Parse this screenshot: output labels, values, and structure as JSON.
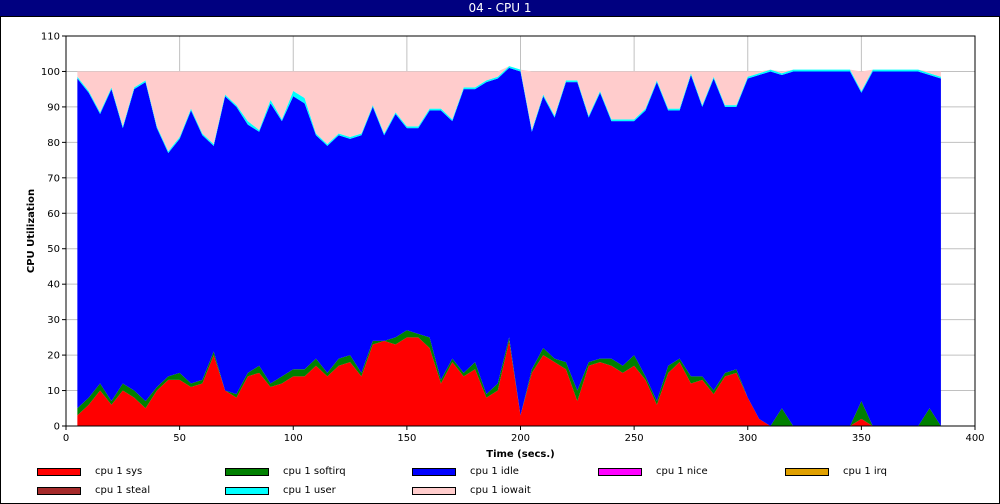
{
  "chart_data": {
    "type": "area",
    "title": "04 - CPU 1",
    "xlabel": "Time (secs.)",
    "ylabel": "CPU Utilization",
    "xlim": [
      0,
      400
    ],
    "ylim": [
      0,
      110
    ],
    "x_ticks": [
      0,
      50,
      100,
      150,
      200,
      250,
      300,
      350,
      400
    ],
    "y_ticks": [
      0,
      10,
      20,
      30,
      40,
      50,
      60,
      70,
      80,
      90,
      100,
      110
    ],
    "grid": true,
    "legend_position": "bottom",
    "x": [
      5,
      10,
      15,
      20,
      25,
      30,
      35,
      40,
      45,
      50,
      55,
      60,
      65,
      70,
      75,
      80,
      85,
      90,
      95,
      100,
      105,
      110,
      115,
      120,
      125,
      130,
      135,
      140,
      145,
      150,
      155,
      160,
      165,
      170,
      175,
      180,
      185,
      190,
      195,
      200,
      205,
      210,
      215,
      220,
      225,
      230,
      235,
      240,
      245,
      250,
      255,
      260,
      265,
      270,
      275,
      280,
      285,
      290,
      295,
      300,
      305,
      310,
      315,
      320,
      325,
      330,
      335,
      340,
      345,
      350,
      355,
      360,
      365,
      370,
      375,
      380,
      385
    ],
    "series": [
      {
        "name": "cpu 1 sys",
        "color": "#ff0000",
        "values": [
          3,
          6,
          10,
          6,
          10,
          8,
          5,
          10,
          13,
          13,
          11,
          12,
          20,
          10,
          8,
          14,
          15,
          11,
          12,
          14,
          14,
          17,
          14,
          17,
          18,
          14,
          23,
          24,
          23,
          25,
          25,
          22,
          12,
          18,
          14,
          16,
          8,
          10,
          24,
          3,
          15,
          20,
          18,
          16,
          7,
          17,
          18,
          17,
          15,
          17,
          13,
          6,
          15,
          18,
          12,
          13,
          9,
          14,
          15,
          8,
          2,
          0,
          0,
          0,
          0,
          0,
          0,
          0,
          0,
          2,
          0,
          0,
          0,
          0,
          0,
          0,
          0
        ]
      },
      {
        "name": "cpu 1 softirq",
        "color": "#008000",
        "values": [
          2,
          2,
          2,
          1,
          2,
          2,
          2,
          1,
          1,
          2,
          1,
          1,
          1,
          0,
          1,
          1,
          2,
          1,
          2,
          2,
          2,
          2,
          1,
          2,
          2,
          1,
          1,
          0,
          2,
          2,
          1,
          3,
          1,
          1,
          1,
          2,
          1,
          2,
          1,
          0,
          1,
          2,
          1,
          2,
          3,
          1,
          1,
          2,
          2,
          3,
          1,
          1,
          2,
          1,
          2,
          1,
          1,
          1,
          1,
          0,
          0,
          0,
          5,
          0,
          0,
          0,
          0,
          0,
          0,
          5,
          0,
          0,
          0,
          0,
          0,
          5,
          0
        ]
      },
      {
        "name": "cpu 1 idle",
        "color": "#0000ff",
        "values": [
          93,
          86,
          76,
          88,
          72,
          85,
          90,
          73,
          63,
          66,
          77,
          69,
          58,
          83,
          81,
          70,
          66,
          79,
          72,
          77,
          75,
          63,
          64,
          63,
          61,
          67,
          66,
          58,
          63,
          57,
          58,
          64,
          76,
          67,
          80,
          77,
          88,
          86,
          76,
          97,
          67,
          71,
          68,
          79,
          87,
          69,
          75,
          67,
          69,
          66,
          75,
          90,
          72,
          70,
          85,
          76,
          88,
          75,
          74,
          90,
          97,
          100,
          94,
          100,
          100,
          100,
          100,
          100,
          100,
          87,
          100,
          100,
          100,
          100,
          100,
          94,
          98
        ]
      },
      {
        "name": "cpu 1 nice",
        "color": "#ff00ff",
        "values": [
          0,
          0,
          0,
          0,
          0,
          0,
          0,
          0,
          0,
          0,
          0,
          0,
          0,
          0,
          0,
          0,
          0,
          0,
          0,
          0,
          0,
          0,
          0,
          0,
          0,
          0,
          0,
          0,
          0,
          0,
          0,
          0,
          0,
          0,
          0,
          0,
          0,
          0,
          0,
          0,
          0,
          0,
          0,
          0,
          0,
          0,
          0,
          0,
          0,
          0,
          0,
          0,
          0,
          0,
          0,
          0,
          0,
          0,
          0,
          0,
          0,
          0,
          0,
          0,
          0,
          0,
          0,
          0,
          0,
          0,
          0,
          0,
          0,
          0,
          0,
          0,
          0
        ]
      },
      {
        "name": "cpu 1 irq",
        "color": "#e0a000",
        "values": [
          0,
          0,
          0,
          0,
          0,
          0,
          0,
          0,
          0,
          0,
          0,
          0,
          0,
          0,
          0,
          0,
          0,
          0,
          0,
          0,
          0,
          0,
          0,
          0,
          0,
          0,
          0,
          0,
          0,
          0,
          0,
          0,
          0,
          0,
          0,
          0,
          0,
          0,
          0,
          0,
          0,
          0,
          0,
          0,
          0,
          0,
          0,
          0,
          0,
          0,
          0,
          0,
          0,
          0,
          0,
          0,
          0,
          0,
          0,
          0,
          0,
          0,
          0,
          0,
          0,
          0,
          0,
          0,
          0,
          0,
          0,
          0,
          0,
          0,
          0,
          0,
          0
        ]
      },
      {
        "name": "cpu 1 steal",
        "color": "#a52a2a",
        "values": [
          0,
          0,
          0,
          0,
          0,
          0,
          0,
          0,
          0,
          0,
          0,
          0,
          0,
          0,
          0,
          0,
          0,
          0,
          0,
          0,
          0,
          0,
          0,
          0,
          0,
          0,
          0,
          0,
          0,
          0,
          0,
          0,
          0,
          0,
          0,
          0,
          0,
          0,
          0,
          0,
          0,
          0,
          0,
          0,
          0,
          0,
          0,
          0,
          0,
          0,
          0,
          0,
          0,
          0,
          0,
          0,
          0,
          0,
          0,
          0,
          0,
          0,
          0,
          0,
          0,
          0,
          0,
          0,
          0,
          0,
          0,
          0,
          0,
          0,
          0,
          0,
          0
        ]
      },
      {
        "name": "cpu 1 user",
        "color": "#00ffff",
        "values": [
          0.5,
          0.5,
          0.5,
          0.5,
          0.5,
          0.5,
          0.5,
          0.5,
          0.5,
          0.5,
          0.5,
          0.5,
          0.5,
          0.5,
          0.5,
          1,
          0.5,
          1,
          0.5,
          1.5,
          1.5,
          0.5,
          0.5,
          0.5,
          0.5,
          0.5,
          0.5,
          0.5,
          0.5,
          0.5,
          0.5,
          0.5,
          0.5,
          0.5,
          0.5,
          0.5,
          0.5,
          0.5,
          0.5,
          0.5,
          0.5,
          0.5,
          0.5,
          0.5,
          0.5,
          0.5,
          0.5,
          0.5,
          0.5,
          0.5,
          0.5,
          0.5,
          0.5,
          0.5,
          0.5,
          0.5,
          0.5,
          0.5,
          0.5,
          0.5,
          0.5,
          0.5,
          0.5,
          0.5,
          0.5,
          0.5,
          0.5,
          0.5,
          0.5,
          0.5,
          0.5,
          0.5,
          0.5,
          0.5,
          0.5,
          0.5,
          0.5
        ]
      },
      {
        "name": "cpu 1 iowait",
        "color": "#ffcccc",
        "values": [
          1.5,
          5.5,
          11.5,
          4.5,
          15.5,
          4.5,
          2.5,
          15.5,
          22.5,
          18.5,
          10.5,
          17.5,
          20.5,
          6.5,
          9.5,
          14,
          16.5,
          8,
          13.5,
          5.5,
          7.5,
          17.5,
          20.5,
          17.5,
          18.5,
          17.5,
          9.5,
          17.5,
          11.5,
          15.5,
          15.5,
          10.5,
          10.5,
          13.5,
          4.5,
          4.5,
          2.5,
          1.5,
          0,
          0,
          16.5,
          6.5,
          12.5,
          2.5,
          2.5,
          12.5,
          5.5,
          13.5,
          13.5,
          13.5,
          10.5,
          2.5,
          10.5,
          10.5,
          0.5,
          9.5,
          1.5,
          9.5,
          9.5,
          1.5,
          0.5,
          0,
          0.5,
          0,
          0,
          0,
          0,
          0,
          0,
          5.5,
          0,
          0,
          0,
          0,
          0,
          0.5,
          1.5
        ]
      }
    ]
  },
  "legend_layout": {
    "columns": 5,
    "items": [
      {
        "label": "cpu 1 sys",
        "color": "#ff0000"
      },
      {
        "label": "cpu 1 softirq",
        "color": "#008000"
      },
      {
        "label": "cpu 1 idle",
        "color": "#0000ff"
      },
      {
        "label": "cpu 1 nice",
        "color": "#ff00ff"
      },
      {
        "label": "cpu 1 irq",
        "color": "#e0a000"
      },
      {
        "label": "cpu 1 steal",
        "color": "#a52a2a"
      },
      {
        "label": "cpu 1 user",
        "color": "#00ffff"
      },
      {
        "label": "cpu 1 iowait",
        "color": "#ffcccc"
      }
    ]
  }
}
